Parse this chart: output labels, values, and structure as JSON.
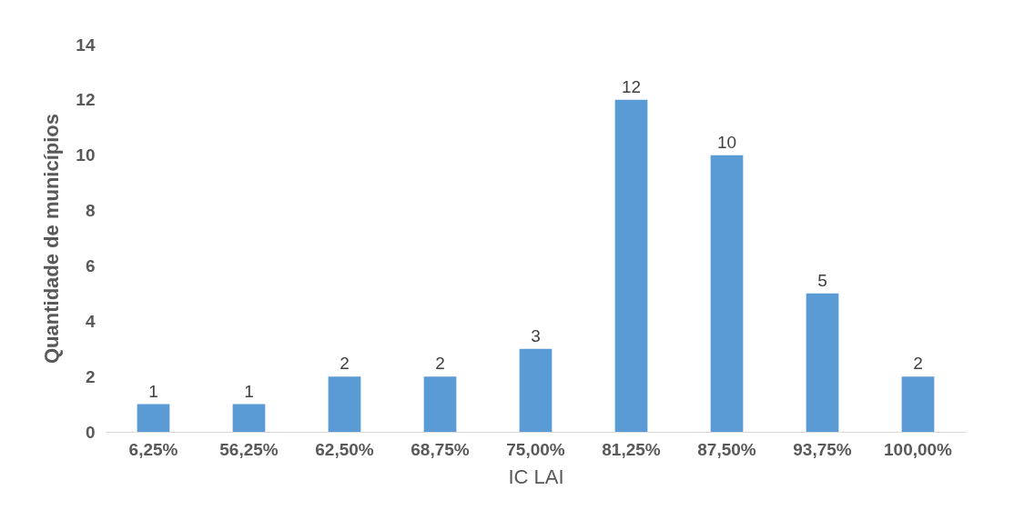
{
  "chart_data": {
    "type": "bar",
    "xlabel": "IC LAI",
    "ylabel": "Quantidade de municípios",
    "categories": [
      "6,25%",
      "56,25%",
      "62,50%",
      "68,75%",
      "75,00%",
      "81,25%",
      "87,50%",
      "93,75%",
      "100,00%"
    ],
    "values": [
      1,
      1,
      2,
      2,
      3,
      12,
      10,
      5,
      2
    ],
    "color": "#5b9bd5",
    "ylim": [
      0,
      14
    ],
    "yticks": [
      0,
      2,
      4,
      6,
      8,
      10,
      12,
      14
    ],
    "grid": false,
    "data_labels": true
  }
}
